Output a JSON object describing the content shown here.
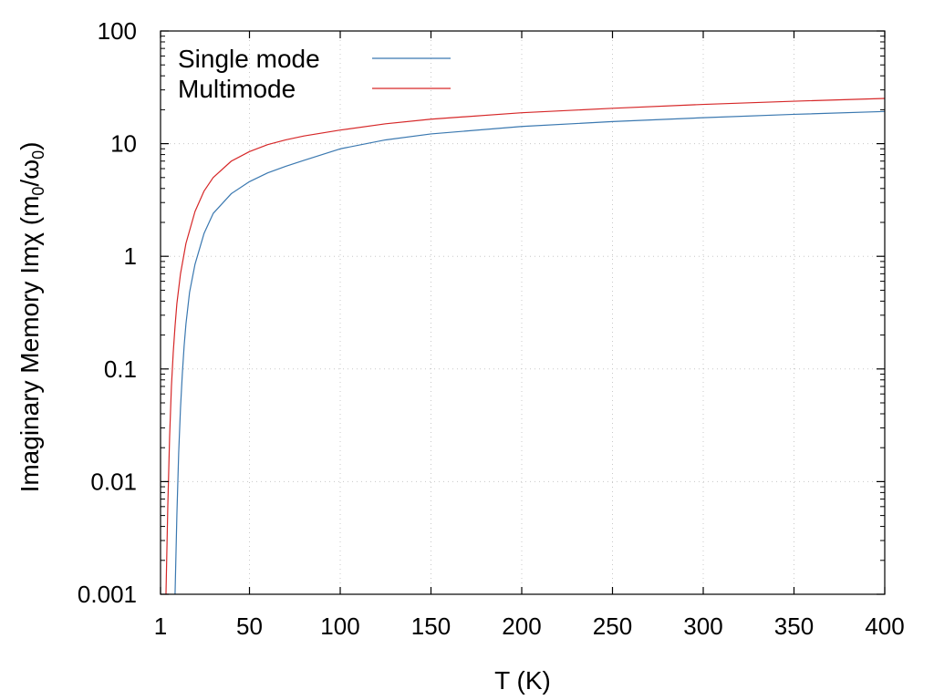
{
  "chart_data": {
    "type": "line",
    "xlabel": "T (K)",
    "ylabel": "Imaginary Memory Imχ (m₀/ω₀)",
    "ylabel_parts": {
      "prefix": "Imaginary Memory Imχ (m",
      "sub1": "0",
      "middle": "/ω",
      "sub2": "0",
      "suffix": ")"
    },
    "xlim": [
      1,
      400
    ],
    "ylim": [
      0.001,
      100
    ],
    "yscale": "log",
    "x_ticks": [
      1,
      50,
      100,
      150,
      200,
      250,
      300,
      350,
      400
    ],
    "x_tick_labels": [
      "1",
      "50",
      "100",
      "150",
      "200",
      "250",
      "300",
      "350",
      "400"
    ],
    "y_ticks": [
      0.001,
      0.01,
      0.1,
      1,
      10,
      100
    ],
    "y_tick_labels": [
      "0.001",
      "0.01",
      "0.1",
      "1",
      "10",
      "100"
    ],
    "grid": true,
    "legend_position": "top-left",
    "series": [
      {
        "name": "Single mode",
        "color": "#3a78b0",
        "x": [
          9.0,
          10,
          11,
          12,
          13,
          14,
          15,
          17,
          20,
          25,
          30,
          40,
          50,
          60,
          70,
          80,
          100,
          125,
          150,
          200,
          250,
          300,
          350,
          400
        ],
        "y": [
          0.001,
          0.005,
          0.018,
          0.045,
          0.09,
          0.16,
          0.25,
          0.48,
          0.85,
          1.6,
          2.4,
          3.6,
          4.6,
          5.5,
          6.3,
          7.1,
          9.0,
          10.8,
          12.2,
          14.2,
          15.7,
          17.0,
          18.2,
          19.3
        ]
      },
      {
        "name": "Multimode",
        "color": "#d62728",
        "x": [
          4.0,
          5,
          6,
          7,
          8,
          9,
          10,
          12,
          15,
          20,
          25,
          30,
          40,
          50,
          60,
          70,
          80,
          100,
          125,
          150,
          200,
          250,
          300,
          350,
          400
        ],
        "y": [
          0.001,
          0.006,
          0.025,
          0.07,
          0.14,
          0.24,
          0.38,
          0.7,
          1.3,
          2.5,
          3.8,
          5.0,
          7.0,
          8.5,
          9.8,
          10.8,
          11.7,
          13.2,
          15.0,
          16.5,
          18.8,
          20.6,
          22.3,
          23.8,
          25.2
        ]
      }
    ]
  }
}
